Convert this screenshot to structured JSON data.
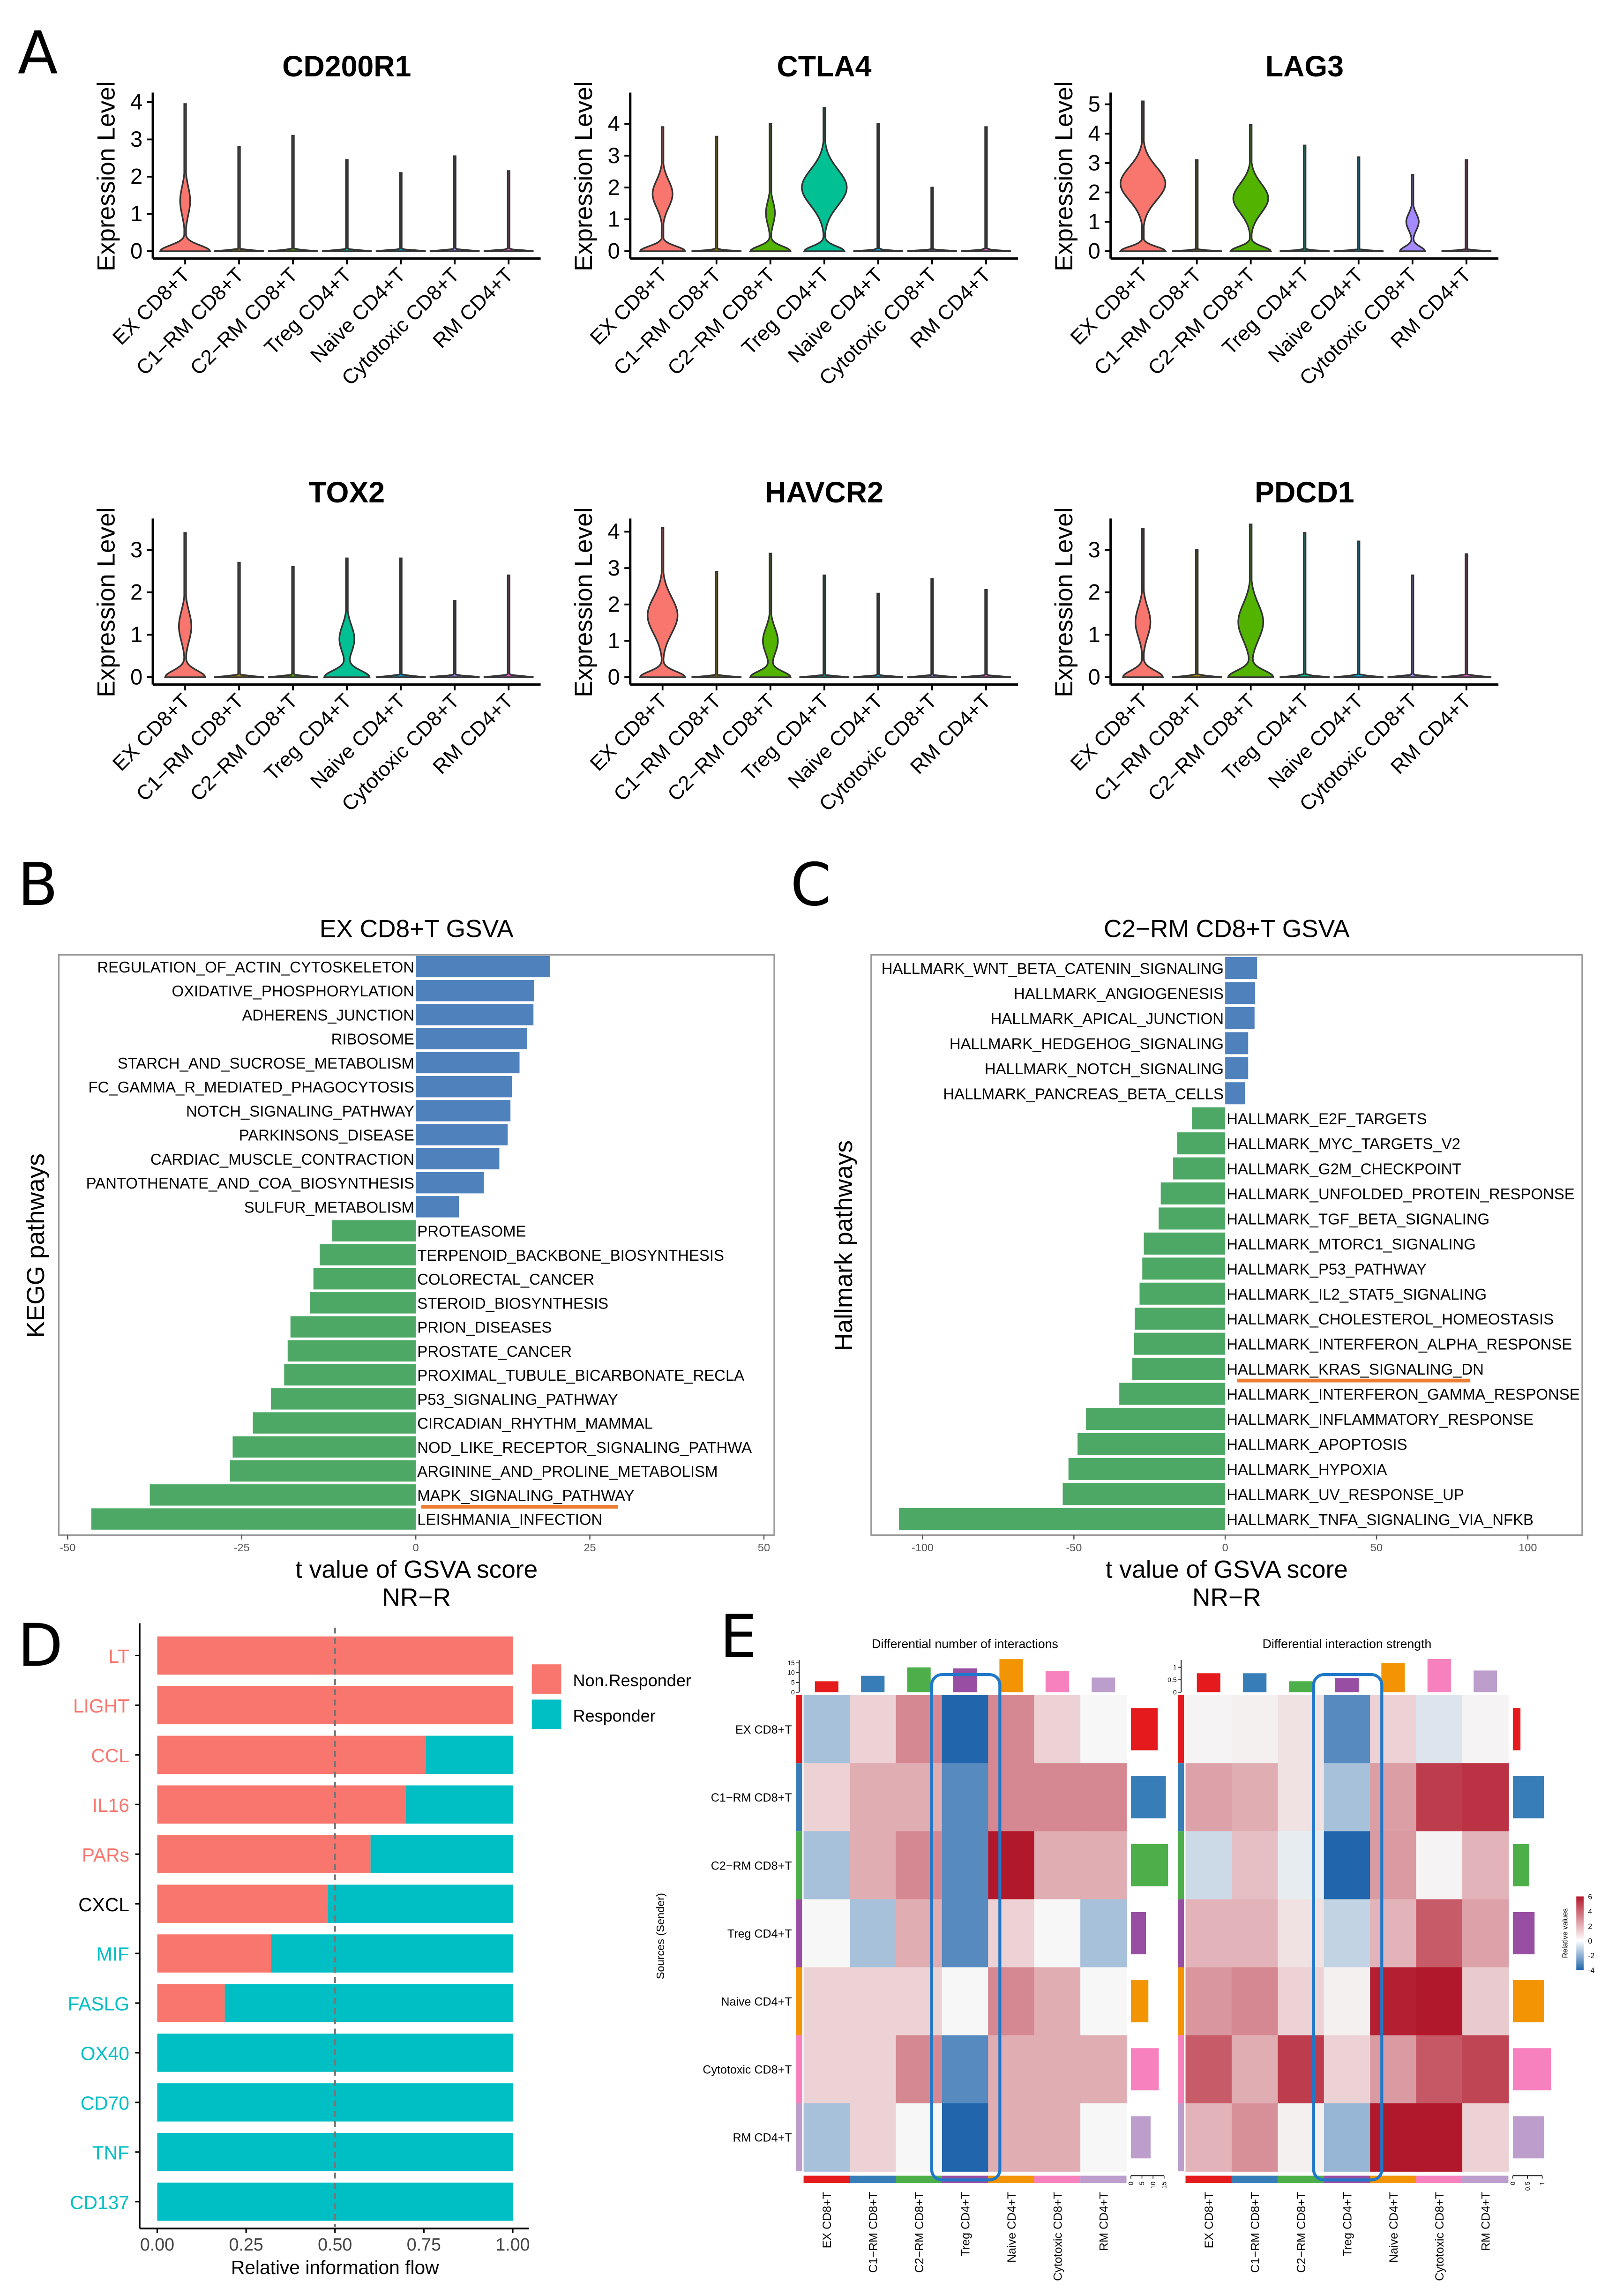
{
  "panel_labels": [
    "A",
    "B",
    "C",
    "D",
    "E"
  ],
  "cell_types": [
    "EX CD8+T",
    "C1−RM CD8+T",
    "C2−RM CD8+T",
    "Treg CD4+T",
    "Naive CD4+T",
    "Cytotoxic CD8+T",
    "RM CD4+T"
  ],
  "violin_colors": [
    "#F8766D",
    "#C49A00",
    "#53B400",
    "#00C094",
    "#00B6EB",
    "#A58AFF",
    "#FB61D7"
  ],
  "celltype_colors": [
    "#E41A1C",
    "#377EB8",
    "#4DAF4A",
    "#984EA3",
    "#F29403",
    "#F781BF",
    "#BC9DCC"
  ],
  "chart_data": [
    {
      "type": "violin",
      "title": "CD200R1",
      "ylabel": "Expression Level",
      "ylim": [
        0,
        4.1
      ],
      "yticks": [
        "0",
        "1",
        "2",
        "3",
        "4"
      ],
      "violins": [
        {
          "max": 3.95,
          "mode": 1.35,
          "width": 0.2,
          "sd": 0.55,
          "base": 1
        },
        {
          "max": 2.8,
          "mode": 0,
          "width": 0,
          "base": 1
        },
        {
          "max": 3.1,
          "mode": 0,
          "width": 0,
          "base": 1
        },
        {
          "max": 2.45,
          "mode": 0,
          "width": 0,
          "base": 1
        },
        {
          "max": 2.1,
          "mode": 0,
          "width": 0,
          "base": 1
        },
        {
          "max": 2.55,
          "mode": 0,
          "width": 0,
          "base": 1
        },
        {
          "max": 2.15,
          "mode": 0,
          "width": 0,
          "base": 1
        }
      ]
    },
    {
      "type": "violin",
      "title": "CTLA4",
      "ylabel": "Expression Level",
      "ylim": [
        0,
        4.8
      ],
      "yticks": [
        "0",
        "1",
        "2",
        "3",
        "4"
      ],
      "violins": [
        {
          "max": 3.9,
          "mode": 1.8,
          "width": 0.4,
          "sd": 0.6,
          "base": 0.9
        },
        {
          "max": 3.6,
          "mode": 0,
          "width": 0,
          "base": 1
        },
        {
          "max": 4.0,
          "mode": 1.2,
          "width": 0.18,
          "sd": 0.5,
          "base": 0.8
        },
        {
          "max": 4.5,
          "mode": 2.0,
          "width": 0.9,
          "sd": 0.8,
          "base": 0.8
        },
        {
          "max": 4.0,
          "mode": 0,
          "width": 0,
          "base": 1
        },
        {
          "max": 2.0,
          "mode": 0,
          "width": 0,
          "base": 1
        },
        {
          "max": 3.9,
          "mode": 0,
          "width": 0,
          "base": 1
        }
      ]
    },
    {
      "type": "violin",
      "title": "LAG3",
      "ylabel": "Expression Level",
      "ylim": [
        0,
        5.2
      ],
      "yticks": [
        "0",
        "1",
        "2",
        "3",
        "4",
        "5"
      ],
      "violins": [
        {
          "max": 5.1,
          "mode": 2.3,
          "width": 0.9,
          "sd": 0.8,
          "base": 0.9
        },
        {
          "max": 3.1,
          "mode": 0,
          "width": 0,
          "base": 1
        },
        {
          "max": 4.3,
          "mode": 1.8,
          "width": 0.7,
          "sd": 0.7,
          "base": 0.8
        },
        {
          "max": 3.6,
          "mode": 0,
          "width": 0,
          "base": 1
        },
        {
          "max": 3.2,
          "mode": 0,
          "width": 0,
          "base": 1
        },
        {
          "max": 2.6,
          "mode": 1.0,
          "width": 0.25,
          "sd": 0.4,
          "base": 0.5
        },
        {
          "max": 3.1,
          "mode": 0,
          "width": 0,
          "base": 1
        }
      ]
    },
    {
      "type": "violin",
      "title": "TOX2",
      "ylabel": "Expression Level",
      "ylim": [
        0,
        3.6
      ],
      "yticks": [
        "0",
        "1",
        "2",
        "3"
      ],
      "violins": [
        {
          "max": 3.4,
          "mode": 1.2,
          "width": 0.25,
          "sd": 0.5,
          "base": 0.8
        },
        {
          "max": 2.7,
          "mode": 0,
          "width": 0,
          "base": 1
        },
        {
          "max": 2.6,
          "mode": 0,
          "width": 0,
          "base": 1
        },
        {
          "max": 2.8,
          "mode": 0.9,
          "width": 0.3,
          "sd": 0.45,
          "base": 0.9
        },
        {
          "max": 2.8,
          "mode": 0,
          "width": 0,
          "base": 1
        },
        {
          "max": 1.8,
          "mode": 0,
          "width": 0,
          "base": 1
        },
        {
          "max": 2.4,
          "mode": 0,
          "width": 0,
          "base": 1
        }
      ]
    },
    {
      "type": "violin",
      "title": "HAVCR2",
      "ylabel": "Expression Level",
      "ylim": [
        0,
        4.2
      ],
      "yticks": [
        "0",
        "1",
        "2",
        "3",
        "4"
      ],
      "violins": [
        {
          "max": 4.1,
          "mode": 1.7,
          "width": 0.6,
          "sd": 0.7,
          "base": 0.9
        },
        {
          "max": 2.9,
          "mode": 0,
          "width": 0,
          "base": 1
        },
        {
          "max": 3.4,
          "mode": 1.0,
          "width": 0.3,
          "sd": 0.5,
          "base": 0.8
        },
        {
          "max": 2.8,
          "mode": 0,
          "width": 0,
          "base": 1
        },
        {
          "max": 2.3,
          "mode": 0,
          "width": 0,
          "base": 1
        },
        {
          "max": 2.7,
          "mode": 0,
          "width": 0,
          "base": 1
        },
        {
          "max": 2.4,
          "mode": 0,
          "width": 0,
          "base": 1
        }
      ]
    },
    {
      "type": "violin",
      "title": "PDCD1",
      "ylabel": "Expression Level",
      "ylim": [
        0,
        3.6
      ],
      "yticks": [
        "0",
        "1",
        "2",
        "3"
      ],
      "violins": [
        {
          "max": 3.5,
          "mode": 1.3,
          "width": 0.3,
          "sd": 0.5,
          "base": 0.8
        },
        {
          "max": 3.0,
          "mode": 0,
          "width": 0,
          "base": 1
        },
        {
          "max": 3.6,
          "mode": 1.3,
          "width": 0.5,
          "sd": 0.6,
          "base": 0.9
        },
        {
          "max": 3.4,
          "mode": 0,
          "width": 0,
          "base": 1
        },
        {
          "max": 3.2,
          "mode": 0,
          "width": 0,
          "base": 1
        },
        {
          "max": 2.4,
          "mode": 0,
          "width": 0,
          "base": 1
        },
        {
          "max": 2.9,
          "mode": 0,
          "width": 0,
          "base": 1
        }
      ]
    },
    {
      "type": "bar",
      "orientation": "horizontal",
      "title": "EX CD8+T GSVA",
      "ylabel": "KEGG pathways",
      "xlabel": "t value of GSVA score",
      "xlabel2": "NR−R",
      "xlim": [
        -50,
        50
      ],
      "xticks": [
        "-50",
        "-25",
        "0",
        "25",
        "50"
      ],
      "xtick_values": [
        -50,
        -25,
        0,
        25,
        50
      ],
      "colors": {
        "up": "#4F81BD",
        "down": "#4DA865",
        "highlight": "#ED7D31"
      },
      "highlight": {
        "row": 22,
        "from": 0.8,
        "to": 29
      },
      "categories": [
        "REGULATION_OF_ACTIN_CYTOSKELETON",
        "OXIDATIVE_PHOSPHORYLATION",
        "ADHERENS_JUNCTION",
        "RIBOSOME",
        "STARCH_AND_SUCROSE_METABOLISM",
        "FC_GAMMA_R_MEDIATED_PHAGOCYTOSIS",
        "NOTCH_SIGNALING_PATHWAY",
        "PARKINSONS_DISEASE",
        "CARDIAC_MUSCLE_CONTRACTION",
        "PANTOTHENATE_AND_COA_BIOSYNTHESIS",
        "SULFUR_METABOLISM",
        "PROTEASOME",
        "TERPENOID_BACKBONE_BIOSYNTHESIS",
        "COLORECTAL_CANCER",
        "STEROID_BIOSYNTHESIS",
        "PRION_DISEASES",
        "PROSTATE_CANCER",
        "PROXIMAL_TUBULE_BICARBONATE_RECLA",
        "P53_SIGNALING_PATHWAY",
        "CIRCADIAN_RHYTHM_MAMMAL",
        "NOD_LIKE_RECEPTOR_SIGNALING_PATHWA",
        "ARGININE_AND_PROLINE_METABOLISM",
        "MAPK_SIGNALING_PATHWAY",
        "LEISHMANIA_INFECTION"
      ],
      "values": [
        19.3,
        17.0,
        16.9,
        16.0,
        14.9,
        13.8,
        13.6,
        13.2,
        12.0,
        9.8,
        6.2,
        -12.0,
        -13.8,
        -14.7,
        -15.2,
        -18.0,
        -18.4,
        -18.9,
        -20.8,
        -23.4,
        -26.3,
        -26.7,
        -38.2,
        -46.6
      ]
    },
    {
      "type": "bar",
      "orientation": "horizontal",
      "title": "C2−RM CD8+T GSVA",
      "ylabel": "Hallmark pathways",
      "xlabel": "t value of GSVA score",
      "xlabel2": "NR−R",
      "xlim": [
        -115,
        115
      ],
      "xticks": [
        "-100",
        "-50",
        "0",
        "50",
        "100"
      ],
      "xtick_values": [
        -100,
        -50,
        0,
        50,
        100
      ],
      "colors": {
        "up": "#4F81BD",
        "down": "#4DA865",
        "highlight": "#ED7D31"
      },
      "highlight": {
        "row": 16,
        "from": 4,
        "to": 81
      },
      "categories": [
        "HALLMARK_WNT_BETA_CATENIN_SIGNALING",
        "HALLMARK_ANGIOGENESIS",
        "HALLMARK_APICAL_JUNCTION",
        "HALLMARK_HEDGEHOG_SIGNALING",
        "HALLMARK_NOTCH_SIGNALING",
        "HALLMARK_PANCREAS_BETA_CELLS",
        "HALLMARK_E2F_TARGETS",
        "HALLMARK_MYC_TARGETS_V2",
        "HALLMARK_G2M_CHECKPOINT",
        "HALLMARK_UNFOLDED_PROTEIN_RESPONSE",
        "HALLMARK_TGF_BETA_SIGNALING",
        "HALLMARK_MTORC1_SIGNALING",
        "HALLMARK_P53_PATHWAY",
        "HALLMARK_IL2_STAT5_SIGNALING",
        "HALLMARK_CHOLESTEROL_HOMEOSTASIS",
        "HALLMARK_INTERFERON_ALPHA_RESPONSE",
        "HALLMARK_KRAS_SIGNALING_DN",
        "HALLMARK_INTERFERON_GAMMA_RESPONSE",
        "HALLMARK_INFLAMMATORY_RESPONSE",
        "HALLMARK_APOPTOSIS",
        "HALLMARK_HYPOXIA",
        "HALLMARK_UV_RESPONSE_UP",
        "HALLMARK_TNFA_SIGNALING_VIA_NFKB"
      ],
      "values": [
        10.5,
        9.9,
        9.7,
        7.6,
        7.6,
        6.5,
        -11.0,
        -15.9,
        -17.2,
        -21.3,
        -22.0,
        -26.9,
        -27.4,
        -28.3,
        -29.9,
        -30.1,
        -30.7,
        -35.0,
        -46.0,
        -48.8,
        -51.8,
        -53.7,
        -107.8
      ]
    },
    {
      "type": "bar",
      "orientation": "horizontal",
      "stacked": true,
      "xlabel": "Relative information flow",
      "xticks": [
        "0.00",
        "0.25",
        "0.50",
        "0.75",
        "1.00"
      ],
      "xtick_values": [
        0,
        0.25,
        0.5,
        0.75,
        1
      ],
      "reference_line": 0.5,
      "legend": {
        "position": "right",
        "entries": [
          "Non.Responder",
          "Responder"
        ]
      },
      "colors": {
        "Non.Responder": "#F8766D",
        "Responder": "#00BFC4"
      },
      "categories": [
        "LT",
        "LIGHT",
        "CCL",
        "IL16",
        "PARs",
        "CXCL",
        "MIF",
        "FASLG",
        "OX40",
        "CD70",
        "TNF",
        "CD137"
      ],
      "label_colors": [
        "#F8766D",
        "#F8766D",
        "#F8766D",
        "#F8766D",
        "#F8766D",
        "#000000",
        "#00BFC4",
        "#00BFC4",
        "#00BFC4",
        "#00BFC4",
        "#00BFC4",
        "#00BFC4"
      ],
      "series": [
        {
          "name": "Non.Responder",
          "values": [
            1,
            1,
            0.755,
            0.7,
            0.6,
            0.48,
            0.32,
            0.19,
            0,
            0,
            0,
            0
          ]
        },
        {
          "name": "Responder",
          "values": [
            0,
            0,
            0.245,
            0.3,
            0.4,
            0.52,
            0.68,
            0.81,
            1,
            1,
            1,
            1
          ]
        }
      ]
    },
    {
      "type": "heatmap",
      "title": "Differential number of interactions",
      "ylabel": "Sources (Sender)",
      "values": [
        [
          -1.5,
          1,
          3,
          -4,
          3,
          1,
          0
        ],
        [
          1,
          2,
          2,
          -3,
          3,
          3,
          3
        ],
        [
          -1.5,
          2,
          3,
          -3,
          6,
          2,
          2
        ],
        [
          0,
          -1.5,
          2,
          -3,
          1,
          0,
          -1.5
        ],
        [
          1,
          1,
          1,
          0,
          3,
          2,
          0
        ],
        [
          1,
          1,
          3,
          -3,
          2,
          2,
          2
        ],
        [
          -1.5,
          1,
          0,
          -4,
          2,
          2,
          0
        ]
      ],
      "top_bars": [
        5.6,
        8.4,
        12.7,
        12.2,
        16.9,
        10.8,
        7.5
      ],
      "top_axis": [
        "0",
        "5",
        "10",
        "15"
      ],
      "top_max": 15,
      "side_bars": [
        12.1,
        15.8,
        16.8,
        6.8,
        7.9,
        12.6,
        8.9
      ],
      "side_axis": [
        "0",
        "5",
        "10",
        "15"
      ],
      "side_max": 15,
      "highlight_column": 3
    },
    {
      "type": "heatmap",
      "title": "Differential interaction strength",
      "values": [
        [
          0.1,
          0.2,
          0.6,
          -3,
          1,
          -0.5,
          0.1
        ],
        [
          2.3,
          2,
          0.6,
          -1.5,
          2.4,
          5,
          5.3
        ],
        [
          -0.8,
          1.5,
          -0.3,
          -4,
          2.5,
          0.1,
          1.8
        ],
        [
          1.8,
          1.8,
          0.6,
          -1,
          1.8,
          4.2,
          2.3
        ],
        [
          2.6,
          3,
          1,
          0.2,
          5.8,
          6,
          1.2
        ],
        [
          4.2,
          2,
          5,
          1,
          2.5,
          4.3,
          4.8
        ],
        [
          1.8,
          2.8,
          0.2,
          -1.8,
          6,
          6,
          1
        ]
      ],
      "top_bars": [
        0.76,
        0.76,
        0.44,
        0.56,
        1.17,
        1.33,
        0.87
      ],
      "top_axis": [
        "0",
        "0.5",
        "1"
      ],
      "top_max": 1,
      "side_bars": [
        0.26,
        1.06,
        0.56,
        0.74,
        1.06,
        1.3,
        1.06
      ],
      "side_axis": [
        "0",
        "0.5",
        "1"
      ],
      "side_max": 1,
      "highlight_column": 3,
      "colorbar": {
        "label": "Relative values",
        "ticks": [
          "6",
          "4",
          "2",
          "0",
          "-2",
          "-4"
        ],
        "range": [
          -4,
          6
        ],
        "low": "#2166AC",
        "mid": "#FFFFFF",
        "high": "#B2182B"
      }
    }
  ]
}
